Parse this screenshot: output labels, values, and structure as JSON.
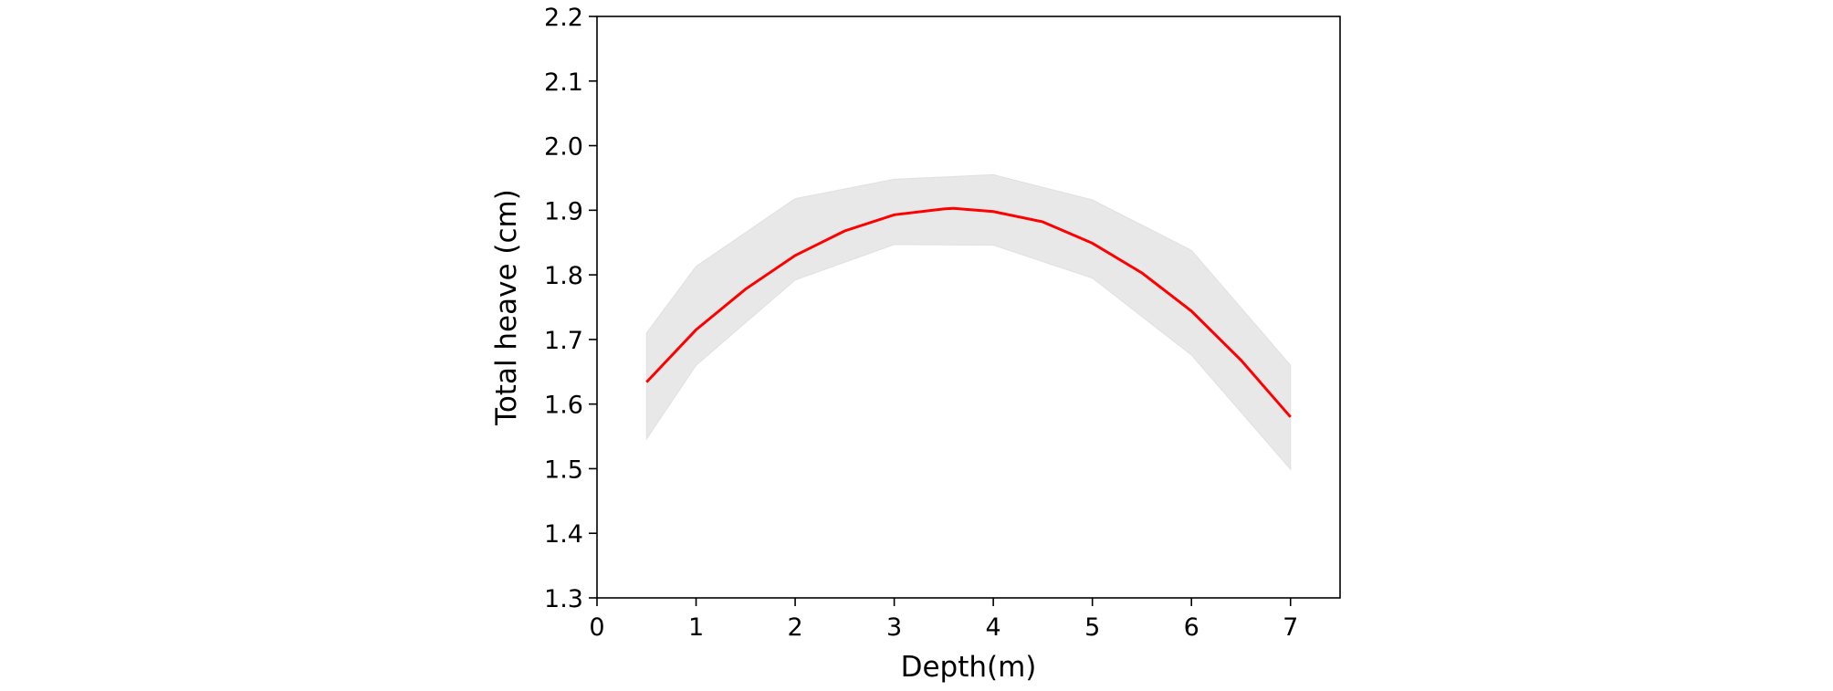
{
  "chart_data": {
    "type": "line",
    "xlabel": "Depth(m)",
    "ylabel": "Total heave (cm)",
    "xlim": [
      0,
      7.5
    ],
    "ylim": [
      1.3,
      2.2
    ],
    "x_ticks": [
      0,
      1,
      2,
      3,
      4,
      5,
      6,
      7
    ],
    "y_ticks": [
      1.3,
      1.4,
      1.5,
      1.6,
      1.7,
      1.8,
      1.9,
      2.0,
      2.1,
      2.2
    ],
    "x_tick_labels": [
      "0",
      "1",
      "2",
      "3",
      "4",
      "5",
      "6",
      "7"
    ],
    "y_tick_labels": [
      "1.3",
      "1.4",
      "1.5",
      "1.6",
      "1.7",
      "1.8",
      "1.9",
      "2.0",
      "2.1",
      "2.2"
    ],
    "grid": false,
    "legend": "none",
    "series": [
      {
        "color": "#ff0000",
        "x": [
          0.5,
          1,
          1.5,
          2,
          2.5,
          3,
          3.5,
          3.6,
          4,
          4.5,
          5,
          5.5,
          6,
          6.5,
          7
        ],
        "y": [
          1.634,
          1.715,
          1.778,
          1.83,
          1.868,
          1.893,
          1.902,
          1.903,
          1.898,
          1.882,
          1.849,
          1.803,
          1.744,
          1.668,
          1.58
        ]
      }
    ],
    "band": {
      "color": "#e8e8e8",
      "x": [
        0.5,
        1,
        2,
        3,
        4,
        5,
        6,
        7
      ],
      "upper": [
        1.71,
        1.813,
        1.918,
        1.948,
        1.955,
        1.916,
        1.838,
        1.66
      ],
      "lower": [
        1.546,
        1.66,
        1.792,
        1.847,
        1.846,
        1.795,
        1.676,
        1.499
      ]
    }
  }
}
